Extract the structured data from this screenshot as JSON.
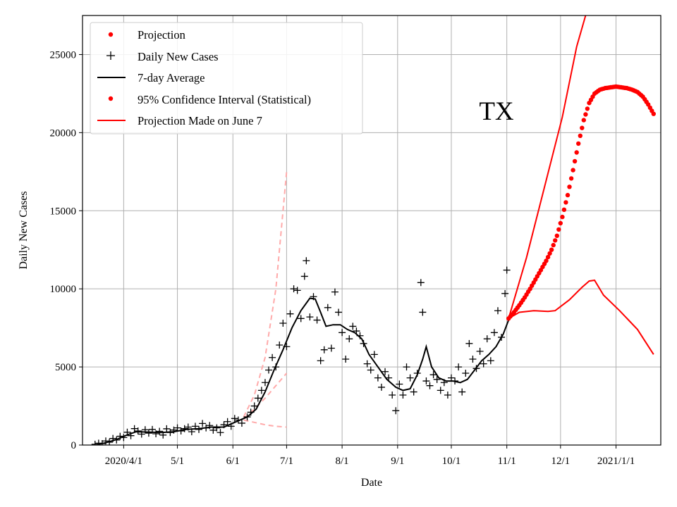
{
  "chart_data": {
    "type": "line",
    "title": "",
    "xlabel": "Date",
    "ylabel": "Daily New Cases",
    "annotation": "TX",
    "ylim": [
      0,
      27500
    ],
    "grid": true,
    "legend_position": "top-left",
    "x_tick_labels": [
      "2020/4/1",
      "5/1",
      "6/1",
      "7/1",
      "8/1",
      "9/1",
      "10/1",
      "11/1",
      "12/1",
      "2021/1/1"
    ],
    "y_tick_labels": [
      "0",
      "5000",
      "10000",
      "15000",
      "20000",
      "25000"
    ],
    "y_ticks": [
      0,
      5000,
      10000,
      15000,
      20000,
      25000
    ],
    "legend": [
      {
        "label": "Projection",
        "marker": "dot",
        "color": "#ff0000"
      },
      {
        "label": "Daily New Cases",
        "marker": "plus",
        "color": "#000000"
      },
      {
        "label": "7-day Average",
        "marker": "line",
        "color": "#000000"
      },
      {
        "label": "95% Confidence Interval (Statistical)",
        "marker": "dot",
        "color": "#ff0000"
      },
      {
        "label": "Projection Made on June 7",
        "marker": "line",
        "color": "#ff0000"
      }
    ],
    "colors": {
      "projection": "#ff0000",
      "cases": "#000000",
      "average": "#000000",
      "june7": "#ffaaaa"
    },
    "daily_new_cases": [
      [
        "2020-03-16",
        50
      ],
      [
        "2020-03-18",
        120
      ],
      [
        "2020-03-20",
        90
      ],
      [
        "2020-03-22",
        260
      ],
      [
        "2020-03-24",
        180
      ],
      [
        "2020-03-26",
        420
      ],
      [
        "2020-03-28",
        320
      ],
      [
        "2020-03-30",
        560
      ],
      [
        "2020-04-01",
        480
      ],
      [
        "2020-04-03",
        820
      ],
      [
        "2020-04-05",
        600
      ],
      [
        "2020-04-07",
        1050
      ],
      [
        "2020-04-09",
        900
      ],
      [
        "2020-04-11",
        700
      ],
      [
        "2020-04-13",
        980
      ],
      [
        "2020-04-15",
        760
      ],
      [
        "2020-04-17",
        1000
      ],
      [
        "2020-04-19",
        720
      ],
      [
        "2020-04-21",
        880
      ],
      [
        "2020-04-23",
        640
      ],
      [
        "2020-04-25",
        1040
      ],
      [
        "2020-04-27",
        800
      ],
      [
        "2020-04-29",
        960
      ],
      [
        "2020-05-01",
        1100
      ],
      [
        "2020-05-03",
        900
      ],
      [
        "2020-05-05",
        1050
      ],
      [
        "2020-05-07",
        1150
      ],
      [
        "2020-05-09",
        850
      ],
      [
        "2020-05-11",
        1200
      ],
      [
        "2020-05-13",
        1000
      ],
      [
        "2020-05-15",
        1380
      ],
      [
        "2020-05-17",
        1100
      ],
      [
        "2020-05-19",
        1250
      ],
      [
        "2020-05-21",
        950
      ],
      [
        "2020-05-23",
        1100
      ],
      [
        "2020-05-25",
        800
      ],
      [
        "2020-05-27",
        1300
      ],
      [
        "2020-05-29",
        1500
      ],
      [
        "2020-05-31",
        1200
      ],
      [
        "2020-06-02",
        1700
      ],
      [
        "2020-06-04",
        1600
      ],
      [
        "2020-06-06",
        1400
      ],
      [
        "2020-06-09",
        1800
      ],
      [
        "2020-06-11",
        2100
      ],
      [
        "2020-06-13",
        2500
      ],
      [
        "2020-06-15",
        3000
      ],
      [
        "2020-06-17",
        3500
      ],
      [
        "2020-06-19",
        4000
      ],
      [
        "2020-06-21",
        4800
      ],
      [
        "2020-06-23",
        5600
      ],
      [
        "2020-06-25",
        5000
      ],
      [
        "2020-06-27",
        6400
      ],
      [
        "2020-06-29",
        7800
      ],
      [
        "2020-07-01",
        6300
      ],
      [
        "2020-07-03",
        8400
      ],
      [
        "2020-07-05",
        10000
      ],
      [
        "2020-07-07",
        9900
      ],
      [
        "2020-07-09",
        8100
      ],
      [
        "2020-07-11",
        10800
      ],
      [
        "2020-07-12",
        11800
      ],
      [
        "2020-07-14",
        8200
      ],
      [
        "2020-07-16",
        9500
      ],
      [
        "2020-07-18",
        8000
      ],
      [
        "2020-07-20",
        5400
      ],
      [
        "2020-07-22",
        6100
      ],
      [
        "2020-07-24",
        8800
      ],
      [
        "2020-07-26",
        6200
      ],
      [
        "2020-07-28",
        9800
      ],
      [
        "2020-07-30",
        8500
      ],
      [
        "2020-08-01",
        7200
      ],
      [
        "2020-08-03",
        5500
      ],
      [
        "2020-08-05",
        6800
      ],
      [
        "2020-08-07",
        7600
      ],
      [
        "2020-08-09",
        7300
      ],
      [
        "2020-08-11",
        7000
      ],
      [
        "2020-08-13",
        6500
      ],
      [
        "2020-08-15",
        5200
      ],
      [
        "2020-08-17",
        4800
      ],
      [
        "2020-08-19",
        5800
      ],
      [
        "2020-08-21",
        4300
      ],
      [
        "2020-08-23",
        3700
      ],
      [
        "2020-08-25",
        4700
      ],
      [
        "2020-08-27",
        4300
      ],
      [
        "2020-08-29",
        3200
      ],
      [
        "2020-08-31",
        2200
      ],
      [
        "2020-09-02",
        3900
      ],
      [
        "2020-09-04",
        3200
      ],
      [
        "2020-09-06",
        5000
      ],
      [
        "2020-09-08",
        4300
      ],
      [
        "2020-09-10",
        3400
      ],
      [
        "2020-09-12",
        4600
      ],
      [
        "2020-09-14",
        10400
      ],
      [
        "2020-09-15",
        8500
      ],
      [
        "2020-09-17",
        4100
      ],
      [
        "2020-09-19",
        3800
      ],
      [
        "2020-09-21",
        4500
      ],
      [
        "2020-09-23",
        4200
      ],
      [
        "2020-09-25",
        3500
      ],
      [
        "2020-09-27",
        4000
      ],
      [
        "2020-09-29",
        3200
      ],
      [
        "2020-10-01",
        4300
      ],
      [
        "2020-10-03",
        4100
      ],
      [
        "2020-10-05",
        5000
      ],
      [
        "2020-10-07",
        3400
      ],
      [
        "2020-10-09",
        4600
      ],
      [
        "2020-10-11",
        6500
      ],
      [
        "2020-10-13",
        5500
      ],
      [
        "2020-10-15",
        4900
      ],
      [
        "2020-10-17",
        6000
      ],
      [
        "2020-10-19",
        5200
      ],
      [
        "2020-10-21",
        6800
      ],
      [
        "2020-10-23",
        5400
      ],
      [
        "2020-10-25",
        7200
      ],
      [
        "2020-10-27",
        8600
      ],
      [
        "2020-10-29",
        6900
      ],
      [
        "2020-10-31",
        9700
      ],
      [
        "2020-11-01",
        11200
      ]
    ],
    "seven_day_average": [
      [
        "2020-03-16",
        0
      ],
      [
        "2020-03-22",
        150
      ],
      [
        "2020-03-28",
        350
      ],
      [
        "2020-04-03",
        650
      ],
      [
        "2020-04-08",
        850
      ],
      [
        "2020-04-15",
        830
      ],
      [
        "2020-04-22",
        800
      ],
      [
        "2020-04-29",
        850
      ],
      [
        "2020-05-06",
        1000
      ],
      [
        "2020-05-13",
        1050
      ],
      [
        "2020-05-20",
        1150
      ],
      [
        "2020-05-27",
        1150
      ],
      [
        "2020-06-02",
        1450
      ],
      [
        "2020-06-09",
        1800
      ],
      [
        "2020-06-14",
        2300
      ],
      [
        "2020-06-19",
        3400
      ],
      [
        "2020-06-24",
        4800
      ],
      [
        "2020-06-29",
        6100
      ],
      [
        "2020-07-04",
        7500
      ],
      [
        "2020-07-09",
        8600
      ],
      [
        "2020-07-14",
        9400
      ],
      [
        "2020-07-17",
        9350
      ],
      [
        "2020-07-20",
        8500
      ],
      [
        "2020-07-23",
        7600
      ],
      [
        "2020-07-27",
        7700
      ],
      [
        "2020-07-31",
        7700
      ],
      [
        "2020-08-04",
        7400
      ],
      [
        "2020-08-08",
        7200
      ],
      [
        "2020-08-12",
        6800
      ],
      [
        "2020-08-16",
        5800
      ],
      [
        "2020-08-21",
        5000
      ],
      [
        "2020-08-26",
        4200
      ],
      [
        "2020-08-31",
        3700
      ],
      [
        "2020-09-04",
        3500
      ],
      [
        "2020-09-08",
        3600
      ],
      [
        "2020-09-12",
        4500
      ],
      [
        "2020-09-15",
        5500
      ],
      [
        "2020-09-17",
        6300
      ],
      [
        "2020-09-20",
        5000
      ],
      [
        "2020-09-24",
        4300
      ],
      [
        "2020-09-28",
        4100
      ],
      [
        "2020-10-02",
        4100
      ],
      [
        "2020-10-06",
        4000
      ],
      [
        "2020-10-10",
        4200
      ],
      [
        "2020-10-14",
        4800
      ],
      [
        "2020-10-18",
        5400
      ],
      [
        "2020-10-22",
        5800
      ],
      [
        "2020-10-26",
        6300
      ],
      [
        "2020-10-30",
        7100
      ],
      [
        "2020-11-02",
        8000
      ]
    ],
    "projection": [
      [
        "2020-11-02",
        8100
      ],
      [
        "2020-11-05",
        8500
      ],
      [
        "2020-11-08",
        8950
      ],
      [
        "2020-11-11",
        9450
      ],
      [
        "2020-11-14",
        10000
      ],
      [
        "2020-11-17",
        10600
      ],
      [
        "2020-11-20",
        11200
      ],
      [
        "2020-11-23",
        11800
      ],
      [
        "2020-11-26",
        12500
      ],
      [
        "2020-11-29",
        13400
      ],
      [
        "2020-12-02",
        14600
      ],
      [
        "2020-12-05",
        16000
      ],
      [
        "2020-12-08",
        17600
      ],
      [
        "2020-12-11",
        19300
      ],
      [
        "2020-12-14",
        20800
      ],
      [
        "2020-12-17",
        21900
      ],
      [
        "2020-12-20",
        22500
      ],
      [
        "2020-12-23",
        22750
      ],
      [
        "2020-12-26",
        22850
      ],
      [
        "2020-12-29",
        22900
      ],
      [
        "2021-01-01",
        22950
      ],
      [
        "2021-01-04",
        22900
      ],
      [
        "2021-01-07",
        22850
      ],
      [
        "2021-01-10",
        22750
      ],
      [
        "2021-01-13",
        22600
      ],
      [
        "2021-01-16",
        22300
      ],
      [
        "2021-01-19",
        21800
      ],
      [
        "2021-01-22",
        21200
      ]
    ],
    "confidence_interval_upper": [
      [
        "2020-11-02",
        8100
      ],
      [
        "2020-11-12",
        12000
      ],
      [
        "2020-11-22",
        16500
      ],
      [
        "2020-12-02",
        21000
      ],
      [
        "2020-12-10",
        25500
      ],
      [
        "2020-12-15",
        27500
      ]
    ],
    "confidence_interval_lower": [
      [
        "2020-11-02",
        8100
      ],
      [
        "2020-11-08",
        8500
      ],
      [
        "2020-11-16",
        8600
      ],
      [
        "2020-11-24",
        8550
      ],
      [
        "2020-11-28",
        8600
      ],
      [
        "2020-12-06",
        9300
      ],
      [
        "2020-12-13",
        10100
      ],
      [
        "2020-12-17",
        10500
      ],
      [
        "2020-12-20",
        10550
      ],
      [
        "2020-12-25",
        9600
      ],
      [
        "2021-01-03",
        8600
      ],
      [
        "2021-01-13",
        7400
      ],
      [
        "2021-01-22",
        5800
      ]
    ],
    "june7_projection": {
      "center": [
        [
          "2020-06-07",
          1700
        ],
        [
          "2020-06-13",
          2300
        ],
        [
          "2020-06-19",
          3000
        ],
        [
          "2020-06-25",
          3800
        ],
        [
          "2020-07-01",
          4600
        ]
      ],
      "upper": [
        [
          "2020-06-07",
          1800
        ],
        [
          "2020-06-13",
          3200
        ],
        [
          "2020-06-19",
          5600
        ],
        [
          "2020-06-25",
          10000
        ],
        [
          "2020-07-01",
          17500
        ]
      ],
      "lower": [
        [
          "2020-06-07",
          1600
        ],
        [
          "2020-06-13",
          1450
        ],
        [
          "2020-06-19",
          1300
        ],
        [
          "2020-06-25",
          1200
        ],
        [
          "2020-07-01",
          1150
        ]
      ]
    }
  }
}
